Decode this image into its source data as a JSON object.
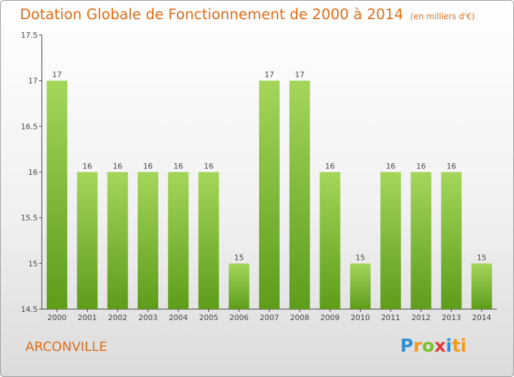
{
  "title": "Dotation Globale de Fonctionnement de 2000 à 2014",
  "unit": "(en milliers d'€)",
  "town": "ARCONVILLE",
  "logo": [
    "P",
    "r",
    "o",
    "x",
    "i",
    "ti"
  ],
  "colors": {
    "bar_top": "#a4d65a",
    "bar_bottom": "#5e9c1a",
    "title": "#dd6d1a"
  },
  "chart_data": {
    "type": "bar",
    "title": "Dotation Globale de Fonctionnement de 2000 à 2014",
    "subtitle": "(en milliers d'€)",
    "categories": [
      "2000",
      "2001",
      "2002",
      "2003",
      "2004",
      "2005",
      "2006",
      "2007",
      "2008",
      "2009",
      "2010",
      "2011",
      "2012",
      "2013",
      "2014"
    ],
    "values": [
      17,
      16,
      16,
      16,
      16,
      16,
      15,
      17,
      17,
      16,
      15,
      16,
      16,
      16,
      15
    ],
    "data_labels": [
      "17",
      "16",
      "16",
      "16",
      "16",
      "16",
      "15",
      "17",
      "17",
      "16",
      "15",
      "16",
      "16",
      "16",
      "15"
    ],
    "yticks": [
      "14.5",
      "15",
      "15.5",
      "16",
      "16.5",
      "17",
      "17.5"
    ],
    "ytick_values": [
      14.5,
      15,
      15.5,
      16,
      16.5,
      17,
      17.5
    ],
    "ylim": [
      14.5,
      17.5
    ],
    "xlabel": "",
    "ylabel": "",
    "grid": false,
    "legend": "none"
  }
}
